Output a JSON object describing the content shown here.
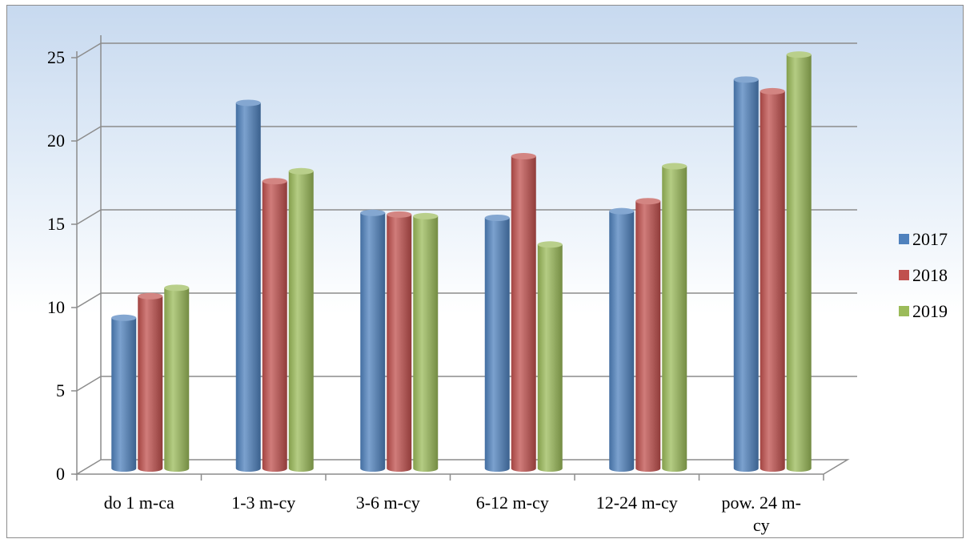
{
  "chart_data": {
    "type": "bar",
    "title": "",
    "xlabel": "",
    "ylabel": "",
    "categories": [
      "do 1 m-ca",
      "1-3 m-cy",
      "3-6 m-cy",
      "6-12 m-cy",
      "12-24 m-cy",
      "pow. 24 m-cy"
    ],
    "category_lines": [
      [
        "do 1 m-ca"
      ],
      [
        "1-3 m-cy"
      ],
      [
        "3-6 m-cy"
      ],
      [
        "6-12 m-cy"
      ],
      [
        "12-24 m-cy"
      ],
      [
        "pow. 24 m-",
        "cy"
      ]
    ],
    "series": [
      {
        "name": "2017",
        "color": "#4f81bd",
        "values": [
          9.0,
          21.9,
          15.3,
          15.0,
          15.4,
          23.3
        ]
      },
      {
        "name": "2018",
        "color": "#c0504d",
        "values": [
          10.3,
          17.2,
          15.2,
          18.7,
          16.0,
          22.6
        ]
      },
      {
        "name": "2019",
        "color": "#9bbb59",
        "values": [
          10.8,
          17.8,
          15.1,
          13.4,
          18.1,
          24.8
        ]
      }
    ],
    "ylim": [
      0,
      25
    ],
    "yticks": [
      "0",
      "5",
      "10",
      "15",
      "20",
      "25"
    ],
    "grid": true,
    "legend_position": "right"
  }
}
